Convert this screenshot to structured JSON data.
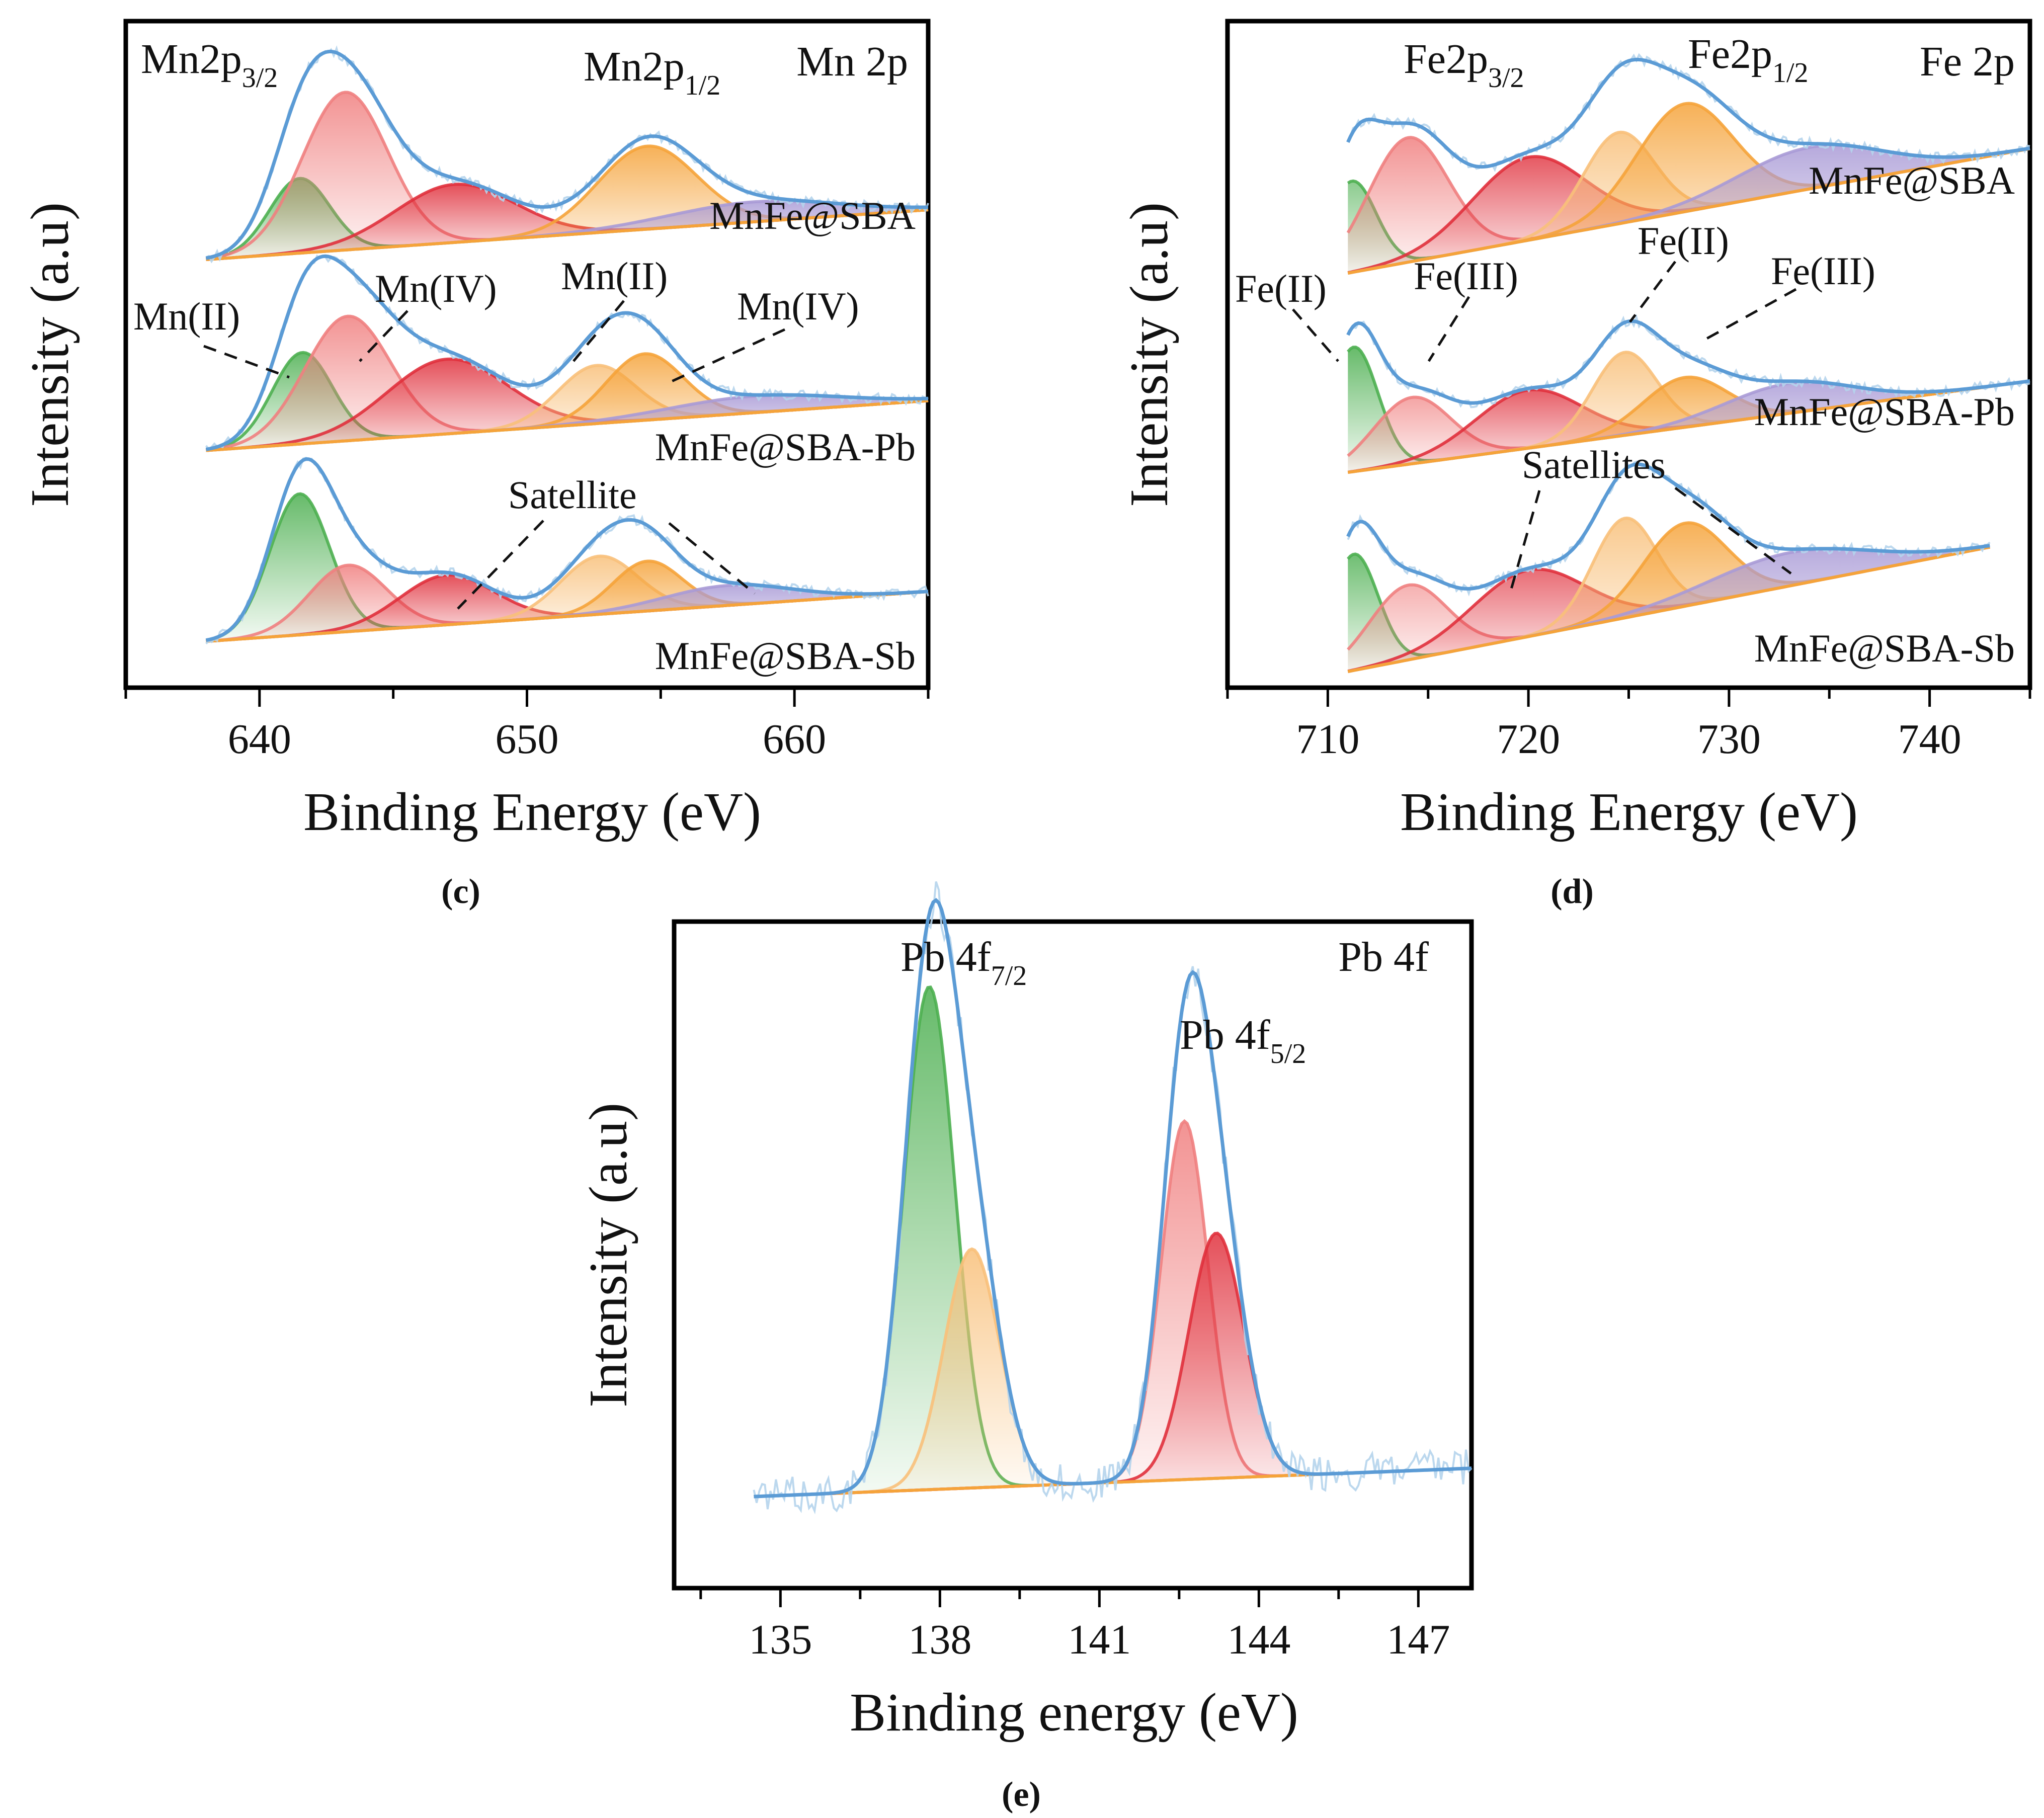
{
  "colors": {
    "green": "#4caf50",
    "pink": "#f08080",
    "red": "#e0303c",
    "orange": "#f5a33a",
    "lightorange": "#f8c07a",
    "purple": "#a99ad6",
    "envelope": "#5b9bd5",
    "raw": "#b5d4ec",
    "label_red": "#e8282d",
    "label_green": "#4caf50",
    "label_blue": "#3a7fc1"
  },
  "chart_data": [
    {
      "id": "c",
      "type": "line",
      "panel_label": "(c)",
      "title": "Mn 2p",
      "xlabel": "Binding Energy (eV)",
      "ylabel": "Intensity (a.u)",
      "xlim": [
        635,
        665
      ],
      "xticks": [
        640,
        650,
        660
      ],
      "grid": false,
      "annotations": [
        "Mn2p",
        "3/2",
        "Mn2p",
        "1/2",
        "Mn(II)",
        "Mn(IV)",
        "Mn(II)",
        "Mn(IV)",
        "Satellite"
      ],
      "series": [
        {
          "name": "MnFe@SBA",
          "label_color": "label_red",
          "offset": 2.3,
          "bg": [
            0.0,
            0.3
          ],
          "peaks": [
            {
              "center": 641.5,
              "height": 0.45,
              "width": 1.4,
              "color": "green"
            },
            {
              "center": 643.2,
              "height": 0.95,
              "width": 2.0,
              "color": "pink"
            },
            {
              "center": 647.3,
              "height": 0.35,
              "width": 2.8,
              "color": "red"
            },
            {
              "center": 654.5,
              "height": 0.5,
              "width": 2.3,
              "color": "orange"
            },
            {
              "center": 658.5,
              "height": 0.12,
              "width": 4.0,
              "color": "purple"
            }
          ]
        },
        {
          "name": "MnFe@SBA-Pb",
          "label_color": "label_green",
          "offset": 1.15,
          "bg": [
            0.0,
            0.3
          ],
          "peaks": [
            {
              "center": 641.6,
              "height": 0.55,
              "width": 1.4,
              "color": "green"
            },
            {
              "center": 643.3,
              "height": 0.75,
              "width": 2.0,
              "color": "pink"
            },
            {
              "center": 647.0,
              "height": 0.45,
              "width": 2.8,
              "color": "red"
            },
            {
              "center": 652.6,
              "height": 0.35,
              "width": 1.8,
              "color": "lightorange"
            },
            {
              "center": 654.4,
              "height": 0.4,
              "width": 1.8,
              "color": "orange"
            },
            {
              "center": 658.5,
              "height": 0.1,
              "width": 4.0,
              "color": "purple"
            }
          ]
        },
        {
          "name": "MnFe@SBA-Sb",
          "label_color": "label_blue",
          "offset": 0.0,
          "bg": [
            0.0,
            0.3
          ],
          "peaks": [
            {
              "center": 641.5,
              "height": 0.85,
              "width": 1.4,
              "color": "green"
            },
            {
              "center": 643.3,
              "height": 0.4,
              "width": 1.8,
              "color": "pink"
            },
            {
              "center": 647.0,
              "height": 0.3,
              "width": 2.2,
              "color": "red"
            },
            {
              "center": 652.7,
              "height": 0.35,
              "width": 1.8,
              "color": "lightorange"
            },
            {
              "center": 654.5,
              "height": 0.3,
              "width": 1.6,
              "color": "orange"
            },
            {
              "center": 657.5,
              "height": 0.12,
              "width": 3.0,
              "color": "purple"
            }
          ]
        }
      ]
    },
    {
      "id": "d",
      "type": "line",
      "panel_label": "(d)",
      "title": "Fe 2p",
      "xlabel": "Binding Energy (eV)",
      "ylabel": "Intensity (a.u)",
      "xlim": [
        705,
        745
      ],
      "xticks": [
        710,
        720,
        730,
        740
      ],
      "grid": false,
      "annotations": [
        "Fe2p",
        "3/2",
        "Fe2p",
        "1/2",
        "Fe(II)",
        "Fe(III)",
        "Fe(II)",
        "Fe(III)",
        "Satellites"
      ],
      "series": [
        {
          "name": "MnFe@SBA",
          "label_color": "label_red",
          "offset": 2.4,
          "bg": [
            0.0,
            0.75
          ],
          "x_end": 745,
          "peaks": [
            {
              "center": 711.2,
              "height": 0.55,
              "width": 1.5,
              "color": "green"
            },
            {
              "center": 714.0,
              "height": 0.75,
              "width": 2.5,
              "color": "pink"
            },
            {
              "center": 720.0,
              "height": 0.5,
              "width": 3.5,
              "color": "red"
            },
            {
              "center": 724.5,
              "height": 0.55,
              "width": 2.2,
              "color": "lightorange"
            },
            {
              "center": 727.8,
              "height": 0.65,
              "width": 3.0,
              "color": "orange"
            },
            {
              "center": 734.0,
              "height": 0.25,
              "width": 4.5,
              "color": "purple"
            }
          ]
        },
        {
          "name": "MnFe@SBA-Pb",
          "label_color": "label_green",
          "offset": 1.2,
          "bg": [
            0.0,
            0.55
          ],
          "x_end": 745,
          "peaks": [
            {
              "center": 711.3,
              "height": 0.75,
              "width": 1.5,
              "color": "green"
            },
            {
              "center": 714.2,
              "height": 0.4,
              "width": 2.4,
              "color": "pink"
            },
            {
              "center": 720.0,
              "height": 0.35,
              "width": 3.3,
              "color": "red"
            },
            {
              "center": 724.8,
              "height": 0.5,
              "width": 2.0,
              "color": "lightorange"
            },
            {
              "center": 727.8,
              "height": 0.3,
              "width": 2.6,
              "color": "orange"
            },
            {
              "center": 733.0,
              "height": 0.18,
              "width": 4.0,
              "color": "purple"
            }
          ]
        },
        {
          "name": "MnFe@SBA-Sb",
          "label_color": "label_blue",
          "offset": 0.0,
          "bg": [
            0.0,
            0.75
          ],
          "x_end": 743,
          "peaks": [
            {
              "center": 711.3,
              "height": 0.7,
              "width": 1.5,
              "color": "green"
            },
            {
              "center": 714.0,
              "height": 0.45,
              "width": 2.4,
              "color": "pink"
            },
            {
              "center": 720.0,
              "height": 0.4,
              "width": 3.5,
              "color": "red"
            },
            {
              "center": 724.8,
              "height": 0.6,
              "width": 2.0,
              "color": "lightorange"
            },
            {
              "center": 727.8,
              "height": 0.5,
              "width": 2.6,
              "color": "orange"
            },
            {
              "center": 733.0,
              "height": 0.2,
              "width": 5.0,
              "color": "purple"
            }
          ]
        }
      ]
    },
    {
      "id": "e",
      "type": "line",
      "panel_label": "(e)",
      "title": "Pb 4f",
      "xlabel": "Binding energy (eV)",
      "ylabel": "Intensity (a.u)",
      "xlim": [
        133,
        148
      ],
      "xticks": [
        135,
        138,
        141,
        144,
        147
      ],
      "grid": false,
      "annotations": [
        "Pb 4f",
        "7/2",
        "Pb 4f",
        "5/2"
      ],
      "series": [
        {
          "name": "Pb 4f",
          "offset": 0.0,
          "bg": [
            0.0,
            0.045
          ],
          "peaks": [
            {
              "center": 137.8,
              "height": 0.8,
              "width": 0.6,
              "color": "green"
            },
            {
              "center": 138.6,
              "height": 0.38,
              "width": 0.65,
              "color": "lightorange"
            },
            {
              "center": 142.6,
              "height": 0.57,
              "width": 0.55,
              "color": "pink"
            },
            {
              "center": 143.2,
              "height": 0.39,
              "width": 0.65,
              "color": "red"
            }
          ]
        }
      ]
    }
  ]
}
